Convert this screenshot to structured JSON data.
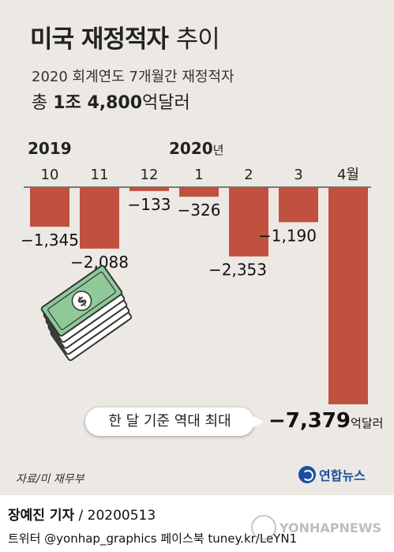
{
  "title": "미국 재정적자",
  "title_suffix": "추이",
  "subtitle": "2020 회계연도 7개월간 재정적자",
  "total_prefix": "총",
  "total_value": "1조 4,800",
  "total_unit": "억달러",
  "year_labels": {
    "y2019": "2019",
    "y2020": "2020",
    "y2020_suffix": "년"
  },
  "chart_data": {
    "type": "bar",
    "categories": [
      "10",
      "11",
      "12",
      "1",
      "2",
      "3",
      "4월"
    ],
    "value_labels": [
      "−1,345",
      "−2,088",
      "−133",
      "−326",
      "−2,353",
      "−1,190",
      "−7,379"
    ],
    "series": [
      {
        "values": [
          -1345,
          -2088,
          -133,
          -326,
          -2353,
          -1190,
          -7379
        ]
      }
    ],
    "ylabel": "",
    "xlabel": "",
    "ylim": [
      -7379,
      0
    ],
    "bar_color": "#c0513f",
    "unit": "억달러"
  },
  "callout": "한 달 기준 역대 최대",
  "big_value": "−7,379",
  "big_value_unit": "억달러",
  "source": "자료/미 재무부",
  "logo_text": "연합뉴스",
  "reporter_name": "장예진 기자",
  "reporter_date": " / 20200513",
  "social": "트위터 @yonhap_graphics  페이스북 tuney.kr/LeYN1",
  "watermark": "YONHAPNEWS",
  "icons": {
    "money": "dollar-bills-icon",
    "logo": "yonhap-logo-icon"
  }
}
